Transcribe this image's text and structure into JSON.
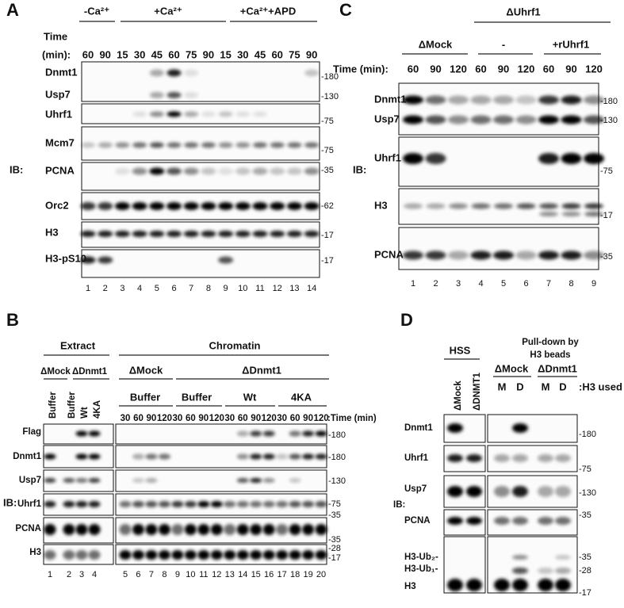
{
  "panel_a": {
    "label": "A",
    "conditions": [
      "-Ca²⁺",
      "+Ca²⁺",
      "+Ca²⁺+APD"
    ],
    "time_label": [
      "Time",
      "(min):"
    ],
    "times": [
      60,
      90,
      15,
      30,
      45,
      60,
      75,
      90,
      15,
      30,
      45,
      60,
      75,
      90
    ],
    "ib": "IB:",
    "rows": [
      "Dnmt1",
      "Usp7",
      "Uhrf1",
      "Mcm7",
      "PCNA",
      "Orc2",
      "H3",
      "H3-pS10"
    ],
    "markers": [
      "-180",
      "-130",
      "-75",
      "-75",
      "-35",
      "-62",
      "-17",
      "-17"
    ],
    "lanes": [
      1,
      2,
      3,
      4,
      5,
      6,
      7,
      8,
      9,
      10,
      11,
      12,
      13,
      14
    ]
  },
  "panel_b": {
    "label": "B",
    "extract": "Extract",
    "chromatin": "Chromatin",
    "extract_groups": [
      "ΔMock",
      "ΔDnmt1"
    ],
    "extract_treatments": [
      "Buffer",
      "Buffer",
      "Wt",
      "4KA"
    ],
    "chromatin_groups": [
      "ΔMock",
      "ΔDnmt1"
    ],
    "chromatin_treatments": [
      "Buffer",
      "Buffer",
      "Wt",
      "4KA"
    ],
    "times": [
      30,
      60,
      90,
      120,
      30,
      60,
      90,
      120,
      30,
      60,
      90,
      120,
      30,
      60,
      90,
      120
    ],
    "time_label": ":Time (min)",
    "ib": "IB:",
    "rows": [
      "Flag",
      "Dnmt1",
      "Usp7",
      "Uhrf1",
      "PCNA",
      "H3"
    ],
    "markers": [
      "-180",
      "-180",
      "-130",
      "-75",
      "-35",
      "-35",
      "-28",
      "-17"
    ],
    "lanes": [
      1,
      2,
      3,
      4,
      5,
      6,
      7,
      8,
      9,
      10,
      11,
      12,
      13,
      14,
      15,
      16,
      17,
      18,
      19,
      20
    ]
  },
  "panel_c": {
    "label": "C",
    "group": "ΔUhrf1",
    "subgroups": [
      "ΔMock",
      "-",
      "+rUhrf1"
    ],
    "time_label": "Time (min):",
    "times": [
      60,
      90,
      120,
      60,
      90,
      120,
      60,
      90,
      120
    ],
    "ib": "IB:",
    "rows": [
      "Dnmt1",
      "Usp7",
      "Uhrf1",
      "H3",
      "PCNA"
    ],
    "markers": [
      "-180",
      "-130",
      "-75",
      "-17",
      "-35"
    ],
    "lanes": [
      1,
      2,
      3,
      4,
      5,
      6,
      7,
      8,
      9
    ]
  },
  "panel_d": {
    "label": "D",
    "hss": "HSS",
    "pulldown": [
      "Pull-down by",
      "H3 beads"
    ],
    "hss_lanes": [
      "ΔMock",
      "ΔDNMT1"
    ],
    "pulldown_groups": [
      "ΔMock",
      "ΔDnmt1"
    ],
    "h3_used": [
      "M",
      "D",
      "M",
      "D"
    ],
    "h3_used_label": ":H3 used",
    "ib": "IB:",
    "rows": [
      "Dnmt1",
      "Uhrf1",
      "Usp7",
      "PCNA",
      "H3-Ub₂-",
      "H3-Ub₁-",
      "H3"
    ],
    "markers": [
      "-180",
      "-75",
      "-130",
      "-35",
      "-35",
      "-28",
      "-17"
    ]
  }
}
